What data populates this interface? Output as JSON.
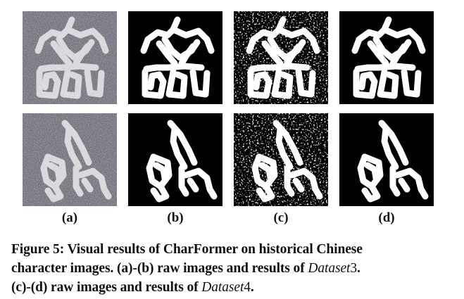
{
  "figure": {
    "panels": [
      {
        "label": "(a)",
        "style": "noisy-raw"
      },
      {
        "label": "(b)",
        "style": "clean"
      },
      {
        "label": "(c)",
        "style": "noisy-binary"
      },
      {
        "label": "(d)",
        "style": "clean"
      }
    ],
    "caption": {
      "line1": "Figure 5: Visual results of CharFormer on historical Chinese",
      "line2_start": "character images. (a)-(b) raw images and results of ",
      "line2_dataset": "Dataset",
      "line2_num": "3",
      "line2_end": ".",
      "line3_start": "(c)-(d) raw images and results of ",
      "line3_dataset": "Dataset",
      "line3_num": "4",
      "line3_end": "."
    }
  }
}
